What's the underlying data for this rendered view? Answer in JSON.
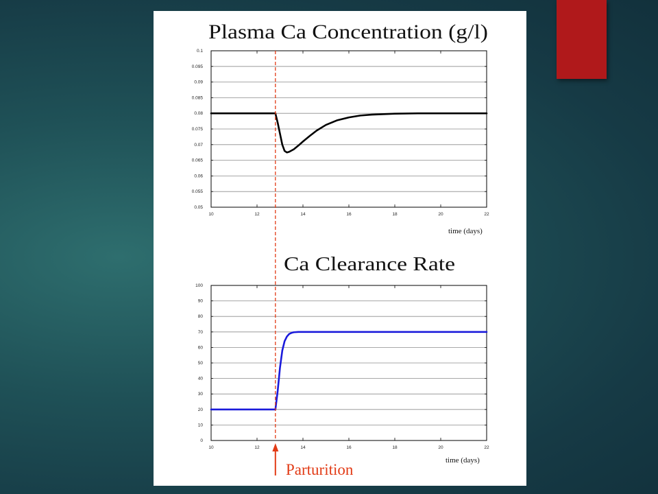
{
  "colors": {
    "background": "#1f5157",
    "accent": "#b0191b",
    "panel": "#ffffff",
    "parturition": "#e23b16",
    "series_plasma": "#000000",
    "series_clearance": "#1a1adb"
  },
  "annotation": {
    "label": "Parturition",
    "x": 12.8,
    "line_style": "dashed",
    "icon": "up-arrow-icon"
  },
  "chart_data": [
    {
      "type": "line",
      "title": "Plasma Ca Concentration (g/l)",
      "xlabel": "time (days)",
      "ylabel": "",
      "xlim": [
        10,
        22
      ],
      "ylim": [
        0.05,
        0.1
      ],
      "xticks": [
        "10",
        "12",
        "14",
        "16",
        "18",
        "20",
        "22"
      ],
      "yticks": [
        "0.05",
        "0.055",
        "0.06",
        "0.065",
        "0.07",
        "0.075",
        "0.08",
        "0.085",
        "0.09",
        "0.095",
        "0.1"
      ],
      "grid": "horizontal",
      "series": [
        {
          "x": [
            10,
            12,
            12.8,
            12.9,
            13.0,
            13.1,
            13.2,
            13.3,
            13.4,
            13.6,
            13.8,
            14.0,
            14.3,
            14.6,
            15.0,
            15.5,
            16.0,
            16.5,
            17.0,
            18.0,
            19.0,
            20.0,
            21.0,
            22.0
          ],
          "y": [
            0.08,
            0.08,
            0.08,
            0.077,
            0.0735,
            0.07,
            0.068,
            0.0675,
            0.0677,
            0.0685,
            0.0697,
            0.071,
            0.0728,
            0.0745,
            0.0763,
            0.0778,
            0.0787,
            0.0793,
            0.0796,
            0.0799,
            0.08,
            0.08,
            0.08,
            0.08
          ]
        }
      ]
    },
    {
      "type": "line",
      "title": "Ca Clearance Rate",
      "xlabel": "time (days)",
      "ylabel": "",
      "xlim": [
        10,
        22
      ],
      "ylim": [
        0,
        100
      ],
      "xticks": [
        "10",
        "12",
        "14",
        "16",
        "18",
        "20",
        "22"
      ],
      "yticks": [
        "0",
        "10",
        "20",
        "30",
        "40",
        "50",
        "60",
        "70",
        "80",
        "90",
        "100"
      ],
      "grid": "horizontal",
      "series": [
        {
          "x": [
            10,
            12,
            12.8,
            12.9,
            13.0,
            13.1,
            13.2,
            13.3,
            13.4,
            13.5,
            13.6,
            13.8,
            14.0,
            15.0,
            16.0,
            18.0,
            20.0,
            22.0
          ],
          "y": [
            20,
            20,
            20,
            32,
            47,
            58,
            64,
            67,
            68.7,
            69.4,
            69.8,
            70,
            70,
            70,
            70,
            70,
            70,
            70
          ]
        }
      ]
    }
  ]
}
